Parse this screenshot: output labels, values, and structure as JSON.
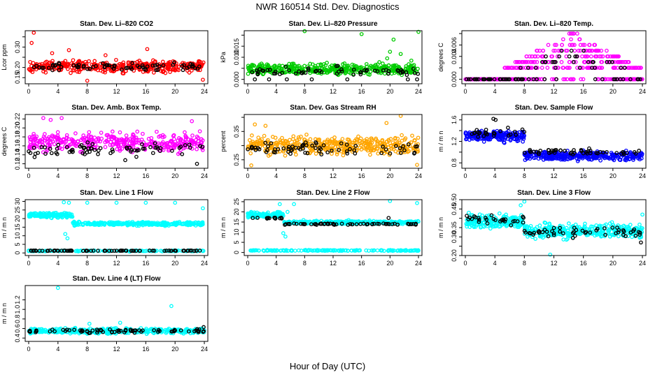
{
  "title": "NWR  160514  Std. Dev. Diagnostics",
  "xlabel": "Hour of Day (UTC)",
  "colors": {
    "co2": "#ff0000",
    "pressure": "#00cc00",
    "temp": "#ff00ff",
    "amb": "#ff00ff",
    "rh": "#ffa500",
    "flow": "#0000ff",
    "line": "#00ffff",
    "black": "#000000"
  },
  "chart_data": [
    {
      "type": "scatter",
      "title": "Stan. Dev. Li–820 CO2",
      "ylabel": "Lcor ppm",
      "xlim": [
        0,
        24
      ],
      "xticks": [
        0,
        4,
        8,
        12,
        16,
        20,
        24
      ],
      "ylim": [
        0.12,
        0.38
      ],
      "yticks": [
        0.15,
        0.2,
        0.25,
        0.3,
        0.35
      ],
      "yticklabels": [
        "0.15",
        "0.20",
        "",
        "0.30",
        ""
      ],
      "series": [
        {
          "name": "all",
          "color": "co2",
          "band": {
            "x": [
              0,
              24
            ],
            "center": 0.205,
            "spread": 0.04,
            "n": 380
          },
          "points": [
            [
              0.7,
              0.37
            ],
            [
              0.4,
              0.32
            ],
            [
              5.5,
              0.285
            ],
            [
              8.0,
              0.135
            ],
            [
              3.2,
              0.27
            ],
            [
              16.2,
              0.29
            ],
            [
              23.8,
              0.14
            ],
            [
              10.5,
              0.26
            ]
          ]
        },
        {
          "name": "hourly",
          "color": "black",
          "band": {
            "x": [
              0,
              24
            ],
            "center": 0.205,
            "spread": 0.025,
            "n": 70
          },
          "points": []
        }
      ]
    },
    {
      "type": "scatter",
      "title": "Stan. Dev. Li–820 Pressure",
      "ylabel": "kPa",
      "xlim": [
        0,
        24
      ],
      "xticks": [
        0,
        4,
        8,
        12,
        16,
        20,
        24
      ],
      "ylim": [
        -0.002,
        0.022
      ],
      "yticks": [
        0.0,
        0.005,
        0.01,
        0.015,
        0.02
      ],
      "yticklabels": [
        "0.000",
        "",
        "0.010",
        "0.015",
        ""
      ],
      "series": [
        {
          "name": "all",
          "color": "pressure",
          "band": {
            "x": [
              0,
              24
            ],
            "center": 0.0045,
            "spread": 0.0035,
            "n": 420
          },
          "points": [
            [
              8.0,
              0.0218
            ],
            [
              24.0,
              0.0215
            ],
            [
              16.0,
              0.0205
            ],
            [
              20.0,
              0.0125
            ],
            [
              20.5,
              0.018
            ],
            [
              23.0,
              0.0085
            ],
            [
              19.6,
              0.0095
            ],
            [
              21.5,
              0.0115
            ],
            [
              18.5,
              0.0078
            ]
          ]
        },
        {
          "name": "hourly",
          "color": "black",
          "band": {
            "x": [
              0,
              24
            ],
            "center": 0.0035,
            "spread": 0.003,
            "n": 60
          },
          "points": [
            [
              1.0,
              0.0
            ],
            [
              3.0,
              0.0
            ],
            [
              5.5,
              0.0
            ],
            [
              9.0,
              0.0
            ],
            [
              14.0,
              0.0
            ],
            [
              22.5,
              0.0
            ],
            [
              23.8,
              0.0
            ]
          ]
        }
      ]
    },
    {
      "type": "scatter",
      "title": "Stan. Dev. Li–820 Temp.",
      "ylabel": "degrees C",
      "xlim": [
        0,
        24
      ],
      "xticks": [
        0,
        4,
        8,
        12,
        16,
        20,
        24
      ],
      "ylim": [
        -0.0008,
        0.0085
      ],
      "yticks": [
        0.0,
        0.002,
        0.004,
        0.006,
        0.008
      ],
      "yticklabels": [
        "0.000",
        "",
        "0.004",
        "0.006",
        ""
      ],
      "series": [
        {
          "name": "all",
          "color": "temp",
          "levels": [
            0.0,
            0.002,
            0.003,
            0.004,
            0.005,
            0.006,
            0.007,
            0.008
          ],
          "dome": {
            "center": 14.5,
            "halfwidth": 11.5,
            "peak": 0.008,
            "n": 480
          },
          "points": []
        },
        {
          "name": "hourly",
          "color": "black",
          "levels": [
            0.0,
            0.002,
            0.003,
            0.004,
            0.005
          ],
          "dome": {
            "center": 14.5,
            "halfwidth": 10,
            "peak": 0.0055,
            "n": 80
          },
          "points": []
        }
      ]
    },
    {
      "type": "scatter",
      "title": "Stan. Dev. Amb. Box Temp.",
      "ylabel": "degrees C",
      "xlim": [
        0,
        24
      ],
      "xticks": [
        0,
        4,
        8,
        12,
        16,
        20,
        24
      ],
      "ylim": [
        0.11,
        0.23
      ],
      "yticks": [
        0.12,
        0.14,
        0.16,
        0.18,
        0.2,
        0.22
      ],
      "yticklabels": [
        "0.12",
        "0.14",
        "0.16",
        "0.18",
        "0.20",
        "0.22"
      ],
      "series": [
        {
          "name": "all",
          "color": "amb",
          "band": {
            "x": [
              0,
              24
            ],
            "center": 0.168,
            "spread": 0.03,
            "n": 380
          },
          "points": [
            [
              2.0,
              0.222
            ],
            [
              4.5,
              0.222
            ],
            [
              22.3,
              0.215
            ],
            [
              3.0,
              0.218
            ]
          ]
        },
        {
          "name": "hourly",
          "color": "black",
          "band": {
            "x": [
              0,
              24
            ],
            "center": 0.153,
            "spread": 0.02,
            "n": 70
          },
          "points": [
            [
              0.8,
              0.135
            ],
            [
              23.0,
              0.12
            ],
            [
              13.2,
              0.128
            ]
          ]
        }
      ]
    },
    {
      "type": "scatter",
      "title": "Stan. Dev. Gas Stream RH",
      "ylabel": "percent",
      "xlim": [
        0,
        24
      ],
      "xticks": [
        0,
        4,
        8,
        12,
        16,
        20,
        24
      ],
      "ylim": [
        0.22,
        0.41
      ],
      "yticks": [
        0.25,
        0.3,
        0.35,
        0.4
      ],
      "yticklabels": [
        "0.25",
        "",
        "0.35",
        ""
      ],
      "series": [
        {
          "name": "all",
          "color": "rh",
          "band": {
            "x": [
              0,
              24
            ],
            "center": 0.3,
            "spread": 0.045,
            "n": 420
          },
          "points": [
            [
              1.0,
              0.375
            ],
            [
              2.5,
              0.37
            ],
            [
              19.5,
              0.38
            ],
            [
              21.5,
              0.405
            ],
            [
              0.5,
              0.23
            ],
            [
              23.8,
              0.232
            ]
          ]
        },
        {
          "name": "hourly",
          "color": "black",
          "band": {
            "x": [
              0,
              24
            ],
            "center": 0.29,
            "spread": 0.03,
            "n": 70
          },
          "points": []
        }
      ]
    },
    {
      "type": "scatter",
      "title": "Stan. Dev. Sample Flow",
      "ylabel": "m / m n",
      "xlim": [
        0,
        24
      ],
      "xticks": [
        0,
        4,
        8,
        12,
        16,
        20,
        24
      ],
      "ylim": [
        0.7,
        1.7
      ],
      "yticks": [
        0.8,
        1.0,
        1.2,
        1.4,
        1.6
      ],
      "yticklabels": [
        "0.8",
        "",
        "1.2",
        "",
        "1.6"
      ],
      "series": [
        {
          "name": "all",
          "color": "flow",
          "band": {
            "x": [
              0,
              8
            ],
            "center": 1.3,
            "spread": 0.15,
            "n": 200
          },
          "band2": {
            "x": [
              8,
              24
            ],
            "center": 0.93,
            "spread": 0.12,
            "n": 340
          },
          "points": []
        },
        {
          "name": "hourly",
          "color": "black",
          "band": {
            "x": [
              0,
              8
            ],
            "center": 1.35,
            "spread": 0.12,
            "n": 25
          },
          "band2": {
            "x": [
              8,
              24
            ],
            "center": 1.0,
            "spread": 0.09,
            "n": 50
          },
          "points": [
            [
              3.8,
              1.62
            ],
            [
              4.1,
              1.6
            ]
          ]
        }
      ]
    },
    {
      "type": "scatter",
      "title": "Stan. Dev. Line 1 Flow",
      "ylabel": "m / m n",
      "xlim": [
        0,
        24
      ],
      "xticks": [
        0,
        4,
        8,
        12,
        16,
        20,
        24
      ],
      "ylim": [
        -1.5,
        31
      ],
      "yticks": [
        0,
        5,
        10,
        15,
        20,
        25,
        30
      ],
      "yticklabels": [
        "0",
        "5",
        "10",
        "15",
        "20",
        "25",
        "30"
      ],
      "series": [
        {
          "name": "all",
          "color": "line",
          "band": {
            "x": [
              0,
              6
            ],
            "center": 22,
            "spread": 2.0,
            "n": 140
          },
          "band2": {
            "x": [
              6,
              24
            ],
            "center": 17,
            "spread": 1.4,
            "n": 300
          },
          "band3": {
            "x": [
              0,
              24
            ],
            "center": 1.2,
            "spread": 0.4,
            "n": 160
          },
          "points": [
            [
              4.8,
              29.5
            ],
            [
              5.5,
              29.2
            ],
            [
              8.0,
              29.2
            ],
            [
              12.0,
              29.2
            ],
            [
              16.0,
              29.2
            ],
            [
              20.0,
              29.2
            ],
            [
              23.8,
              26.0
            ],
            [
              5.0,
              11.0
            ],
            [
              5.3,
              8.5
            ]
          ]
        },
        {
          "name": "hourly",
          "color": "black",
          "band": {
            "x": [
              0,
              24
            ],
            "center": 1.3,
            "spread": 0.2,
            "n": 80
          },
          "points": []
        }
      ]
    },
    {
      "type": "scatter",
      "title": "Stan. Dev. Line 2 Flow",
      "ylabel": "m / m n",
      "xlim": [
        0,
        24
      ],
      "xticks": [
        0,
        4,
        8,
        12,
        16,
        20,
        24
      ],
      "ylim": [
        -1.5,
        26
      ],
      "yticks": [
        0,
        5,
        10,
        15,
        20,
        25
      ],
      "yticklabels": [
        "0",
        "5",
        "10",
        "15",
        "20",
        "25"
      ],
      "series": [
        {
          "name": "all",
          "color": "line",
          "band": {
            "x": [
              0,
              5
            ],
            "center": 18.5,
            "spread": 1.8,
            "n": 120
          },
          "band2": {
            "x": [
              5,
              24
            ],
            "center": 14.8,
            "spread": 1.2,
            "n": 320
          },
          "band3": {
            "x": [
              0,
              24
            ],
            "center": 1.0,
            "spread": 0.35,
            "n": 160
          },
          "points": [
            [
              4.5,
              23.8
            ],
            [
              6.5,
              23.8
            ],
            [
              20.0,
              25.3
            ],
            [
              23.8,
              24.3
            ],
            [
              5.0,
              9.5
            ],
            [
              5.3,
              7.8
            ],
            [
              5.6,
              20.0
            ]
          ]
        },
        {
          "name": "hourly",
          "color": "black",
          "band": {
            "x": [
              0,
              5
            ],
            "center": 17.0,
            "spread": 0.5,
            "n": 15
          },
          "band2": {
            "x": [
              5,
              24
            ],
            "center": 14.0,
            "spread": 0.5,
            "n": 60
          },
          "points": [
            [
              19.8,
              17.0
            ]
          ]
        }
      ]
    },
    {
      "type": "scatter",
      "title": "Stan. Dev. Line 3 Flow",
      "ylabel": "m / m n",
      "xlim": [
        0,
        24
      ],
      "xticks": [
        0,
        4,
        8,
        12,
        16,
        20,
        24
      ],
      "ylim": [
        0.2,
        0.5
      ],
      "yticks": [
        0.2,
        0.25,
        0.3,
        0.35,
        0.4,
        0.45,
        0.5
      ],
      "yticklabels": [
        "0.20",
        "",
        "0.30",
        "0.35",
        "",
        "0.45",
        "0.50"
      ],
      "series": [
        {
          "name": "all",
          "color": "line",
          "band": {
            "x": [
              0,
              8
            ],
            "center": 0.385,
            "spread": 0.05,
            "n": 200
          },
          "band2": {
            "x": [
              8,
              24
            ],
            "center": 0.33,
            "spread": 0.055,
            "n": 340
          },
          "points": [
            [
              7.5,
              0.47
            ],
            [
              8.0,
              0.49
            ],
            [
              11.5,
              0.205
            ],
            [
              24.0,
              0.42
            ]
          ]
        },
        {
          "name": "hourly",
          "color": "black",
          "band": {
            "x": [
              0,
              8
            ],
            "center": 0.39,
            "spread": 0.035,
            "n": 28
          },
          "band2": {
            "x": [
              8,
              24
            ],
            "center": 0.33,
            "spread": 0.04,
            "n": 50
          },
          "points": [
            [
              23.8,
              0.27
            ]
          ]
        }
      ]
    },
    {
      "type": "scatter",
      "title": "Stan. Dev. Line 4 (LT) Flow",
      "ylabel": "m / m n",
      "xlim": [
        0,
        24
      ],
      "xticks": [
        0,
        4,
        8,
        12,
        16,
        20,
        24
      ],
      "ylim": [
        0.33,
        1.5
      ],
      "yticks": [
        0.4,
        0.6,
        0.8,
        1.0,
        1.2
      ],
      "yticklabels": [
        "0.4",
        "0.6",
        "0.8",
        "1.0",
        "1.2"
      ],
      "series": [
        {
          "name": "all",
          "color": "line",
          "band": {
            "x": [
              0,
              24
            ],
            "center": 0.55,
            "spread": 0.08,
            "n": 420
          },
          "points": [
            [
              4.0,
              1.45
            ],
            [
              19.5,
              1.07
            ],
            [
              12.5,
              0.72
            ],
            [
              8.3,
              0.7
            ]
          ]
        },
        {
          "name": "hourly",
          "color": "black",
          "band": {
            "x": [
              0,
              24
            ],
            "center": 0.55,
            "spread": 0.05,
            "n": 70
          },
          "points": [
            [
              23.9,
              0.63
            ]
          ]
        }
      ]
    }
  ]
}
